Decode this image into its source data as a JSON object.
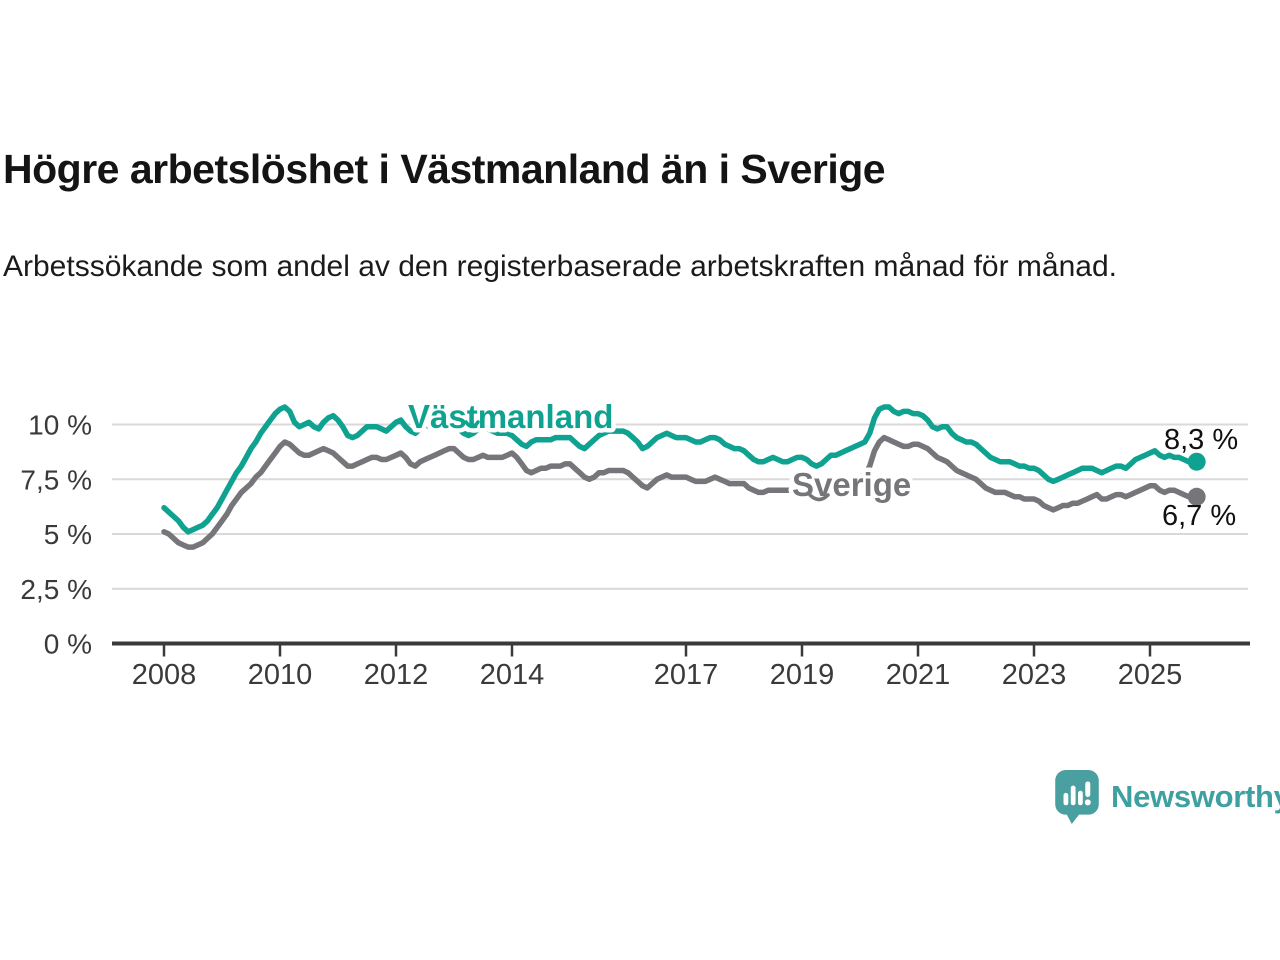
{
  "header": {
    "title": "Högre arbetslöshet i Västmanland än i Sverige",
    "subtitle": "Arbetssökande som andel av den registerbaserade arbetskraften månad för månad."
  },
  "chart_data": {
    "type": "line",
    "unit": "%",
    "frequency": "monthly",
    "x_start": "2008-01",
    "x_end": "2025-09",
    "grid": "horizontal",
    "legend_position": "inline-labels",
    "ylim": [
      0,
      11.2
    ],
    "y_ticks": [
      {
        "value": 0,
        "label": "0 %"
      },
      {
        "value": 2.5,
        "label": "2,5 %"
      },
      {
        "value": 5,
        "label": "5 %"
      },
      {
        "value": 7.5,
        "label": "7,5 %"
      },
      {
        "value": 10,
        "label": "10 %"
      }
    ],
    "x_ticks": [
      {
        "value": 2008,
        "label": "2008"
      },
      {
        "value": 2010,
        "label": "2010"
      },
      {
        "value": 2012,
        "label": "2012"
      },
      {
        "value": 2014,
        "label": "2014"
      },
      {
        "value": 2017,
        "label": "2017"
      },
      {
        "value": 2019,
        "label": "2019"
      },
      {
        "value": 2021,
        "label": "2021"
      },
      {
        "value": 2023,
        "label": "2023"
      },
      {
        "value": 2025,
        "label": "2025"
      }
    ],
    "series": [
      {
        "name": "Västmanland",
        "color": "#0fa290",
        "end_label": "8,3 %",
        "values": [
          6.2,
          6.0,
          5.8,
          5.6,
          5.3,
          5.1,
          5.2,
          5.3,
          5.4,
          5.6,
          5.9,
          6.2,
          6.6,
          7.0,
          7.4,
          7.8,
          8.1,
          8.5,
          8.9,
          9.2,
          9.6,
          9.9,
          10.2,
          10.5,
          10.7,
          10.8,
          10.6,
          10.1,
          9.9,
          10.0,
          10.1,
          9.9,
          9.8,
          10.1,
          10.3,
          10.4,
          10.2,
          9.9,
          9.5,
          9.4,
          9.5,
          9.7,
          9.9,
          9.9,
          9.9,
          9.8,
          9.7,
          9.9,
          10.1,
          10.2,
          9.9,
          9.7,
          9.6,
          9.8,
          10.0,
          9.9,
          9.8,
          9.9,
          9.9,
          10.0,
          10.0,
          9.8,
          9.6,
          9.5,
          9.6,
          9.8,
          9.9,
          9.8,
          9.7,
          9.6,
          9.6,
          9.6,
          9.5,
          9.3,
          9.1,
          9.0,
          9.2,
          9.3,
          9.3,
          9.3,
          9.3,
          9.4,
          9.4,
          9.4,
          9.4,
          9.2,
          9.0,
          8.9,
          9.1,
          9.3,
          9.5,
          9.6,
          9.7,
          9.7,
          9.7,
          9.7,
          9.6,
          9.4,
          9.2,
          8.9,
          9.0,
          9.2,
          9.4,
          9.5,
          9.6,
          9.5,
          9.4,
          9.4,
          9.4,
          9.3,
          9.2,
          9.2,
          9.3,
          9.4,
          9.4,
          9.3,
          9.1,
          9.0,
          8.9,
          8.9,
          8.8,
          8.6,
          8.4,
          8.3,
          8.3,
          8.4,
          8.5,
          8.4,
          8.3,
          8.3,
          8.4,
          8.5,
          8.5,
          8.4,
          8.2,
          8.1,
          8.2,
          8.4,
          8.6,
          8.6,
          8.7,
          8.8,
          8.9,
          9.0,
          9.1,
          9.2,
          9.6,
          10.3,
          10.7,
          10.8,
          10.8,
          10.6,
          10.5,
          10.6,
          10.6,
          10.5,
          10.5,
          10.4,
          10.2,
          9.9,
          9.8,
          9.9,
          9.9,
          9.6,
          9.4,
          9.3,
          9.2,
          9.2,
          9.1,
          8.9,
          8.7,
          8.5,
          8.4,
          8.3,
          8.3,
          8.3,
          8.2,
          8.1,
          8.1,
          8.0,
          8.0,
          7.9,
          7.7,
          7.5,
          7.4,
          7.5,
          7.6,
          7.7,
          7.8,
          7.9,
          8.0,
          8.0,
          8.0,
          7.9,
          7.8,
          7.9,
          8.0,
          8.1,
          8.1,
          8.0,
          8.2,
          8.4,
          8.5,
          8.6,
          8.7,
          8.8,
          8.6,
          8.5,
          8.6,
          8.5,
          8.5,
          8.4,
          8.3
        ]
      },
      {
        "name": "Sverige",
        "color": "#76757a",
        "end_label": "6,7 %",
        "values": [
          5.1,
          5.0,
          4.8,
          4.6,
          4.5,
          4.4,
          4.4,
          4.5,
          4.6,
          4.8,
          5.0,
          5.3,
          5.6,
          5.9,
          6.3,
          6.6,
          6.9,
          7.1,
          7.3,
          7.6,
          7.8,
          8.1,
          8.4,
          8.7,
          9.0,
          9.2,
          9.1,
          8.9,
          8.7,
          8.6,
          8.6,
          8.7,
          8.8,
          8.9,
          8.8,
          8.7,
          8.5,
          8.3,
          8.1,
          8.1,
          8.2,
          8.3,
          8.4,
          8.5,
          8.5,
          8.4,
          8.4,
          8.5,
          8.6,
          8.7,
          8.5,
          8.2,
          8.1,
          8.3,
          8.4,
          8.5,
          8.6,
          8.7,
          8.8,
          8.9,
          8.9,
          8.7,
          8.5,
          8.4,
          8.4,
          8.5,
          8.6,
          8.5,
          8.5,
          8.5,
          8.5,
          8.6,
          8.7,
          8.5,
          8.2,
          7.9,
          7.8,
          7.9,
          8.0,
          8.0,
          8.1,
          8.1,
          8.1,
          8.2,
          8.2,
          8.0,
          7.8,
          7.6,
          7.5,
          7.6,
          7.8,
          7.8,
          7.9,
          7.9,
          7.9,
          7.9,
          7.8,
          7.6,
          7.4,
          7.2,
          7.1,
          7.3,
          7.5,
          7.6,
          7.7,
          7.6,
          7.6,
          7.6,
          7.6,
          7.5,
          7.4,
          7.4,
          7.4,
          7.5,
          7.6,
          7.5,
          7.4,
          7.3,
          7.3,
          7.3,
          7.3,
          7.1,
          7.0,
          6.9,
          6.9,
          7.0,
          7.0,
          7.0,
          7.0,
          7.0,
          7.0,
          7.0,
          7.0,
          6.9,
          6.9,
          6.9,
          7.0,
          7.1,
          7.2,
          7.2,
          7.2,
          7.3,
          7.4,
          7.5,
          7.6,
          7.7,
          8.1,
          8.8,
          9.2,
          9.4,
          9.3,
          9.2,
          9.1,
          9.0,
          9.0,
          9.1,
          9.1,
          9.0,
          8.9,
          8.7,
          8.5,
          8.4,
          8.3,
          8.1,
          7.9,
          7.8,
          7.7,
          7.6,
          7.5,
          7.3,
          7.1,
          7.0,
          6.9,
          6.9,
          6.9,
          6.8,
          6.7,
          6.7,
          6.6,
          6.6,
          6.6,
          6.5,
          6.3,
          6.2,
          6.1,
          6.2,
          6.3,
          6.3,
          6.4,
          6.4,
          6.5,
          6.6,
          6.7,
          6.8,
          6.6,
          6.6,
          6.7,
          6.8,
          6.8,
          6.7,
          6.8,
          6.9,
          7.0,
          7.1,
          7.2,
          7.2,
          7.0,
          6.9,
          7.0,
          7.0,
          6.9,
          6.8,
          6.7
        ]
      }
    ],
    "colors": {
      "grid": "#d9d9d9",
      "axis": "#3a3a3a",
      "tick_text": "#3a3a3a",
      "end_label_text": "#111111"
    }
  },
  "footer": {
    "brand": "Newsworthy",
    "brand_color": "#3fa0a1",
    "logo_color": "#4aa0a1"
  }
}
